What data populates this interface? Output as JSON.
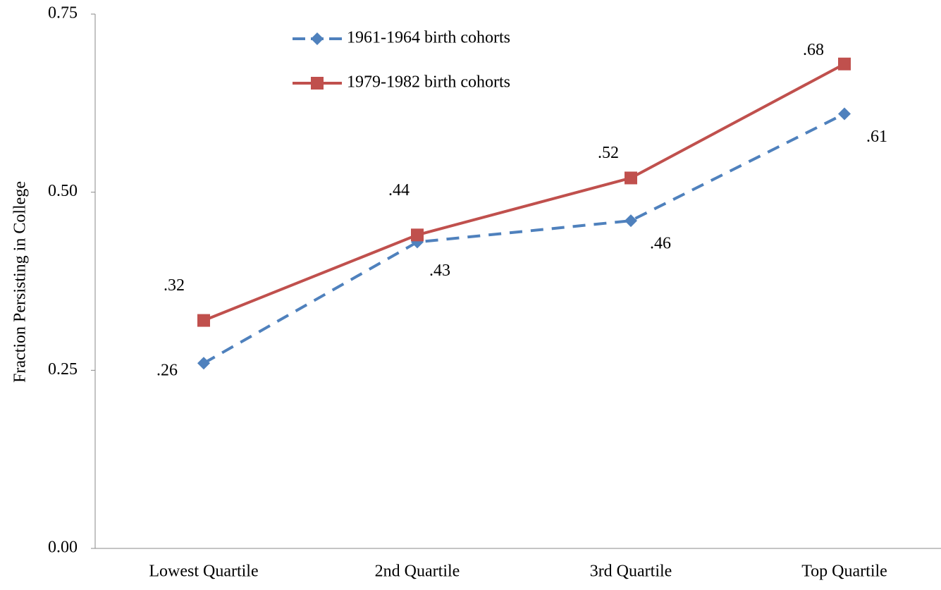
{
  "chart_data": {
    "type": "line",
    "y_label": "Fraction Persisting in College",
    "categories": [
      "Lowest Quartile",
      "2nd Quartile",
      "3rd Quartile",
      "Top Quartile"
    ],
    "series": [
      {
        "name": "1961-1964 birth cohorts",
        "color": "#4f81bd",
        "dashed": true,
        "marker": "diamond",
        "values": [
          0.26,
          0.43,
          0.46,
          0.61
        ],
        "value_labels": [
          ".26",
          ".43",
          ".46",
          ".61"
        ]
      },
      {
        "name": "1979-1982 birth cohorts",
        "color": "#c0504d",
        "dashed": false,
        "marker": "square",
        "values": [
          0.32,
          0.44,
          0.52,
          0.68
        ],
        "value_labels": [
          ".32",
          ".44",
          ".52",
          ".68"
        ]
      }
    ],
    "ylim": [
      0,
      0.75
    ],
    "yticks": [
      {
        "value": 0,
        "label": "0.00"
      },
      0.25,
      {
        "value": 0.5,
        "label": "0.50"
      },
      0.75
    ],
    "legend": "top"
  }
}
